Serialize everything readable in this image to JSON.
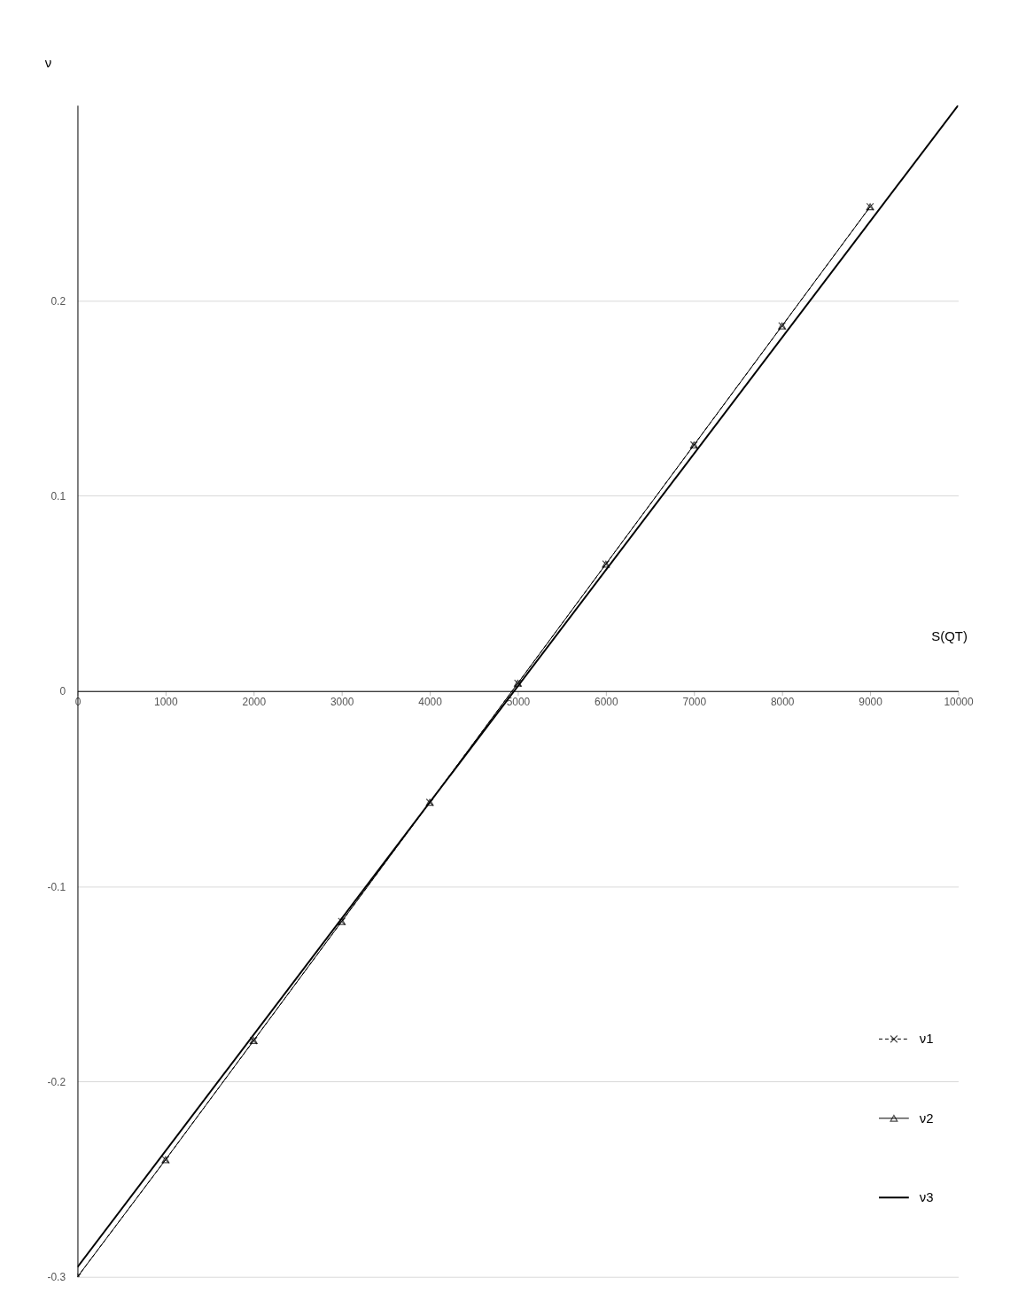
{
  "chart_data": {
    "type": "line",
    "xlabel": "S(QT)",
    "ylabel": "ν",
    "xlim": [
      0,
      10000
    ],
    "ylim": [
      -0.3,
      0.3
    ],
    "xticks": [
      0,
      1000,
      2000,
      3000,
      4000,
      5000,
      6000,
      7000,
      8000,
      9000,
      10000
    ],
    "yticks": [
      -0.3,
      -0.2,
      -0.1,
      0,
      0.1,
      0.2
    ],
    "grid": "y",
    "legend": "bottom right",
    "series": [
      {
        "name": "ν1",
        "color": "#000000",
        "marker": "cross",
        "line_style": "dashed",
        "x": [
          0,
          1000,
          2000,
          3000,
          4000,
          5000,
          6000,
          7000,
          8000,
          9000
        ],
        "values": [
          -0.3,
          -0.24,
          -0.179,
          -0.118,
          -0.057,
          0.004,
          0.065,
          0.126,
          0.187,
          0.248
        ]
      },
      {
        "name": "ν2",
        "color": "#000000",
        "marker": "triangle",
        "line_style": "solid",
        "x": [
          0,
          1000,
          2000,
          3000,
          4000,
          5000,
          6000,
          7000,
          8000,
          9000
        ],
        "values": [
          -0.3,
          -0.24,
          -0.179,
          -0.118,
          -0.057,
          0.004,
          0.065,
          0.126,
          0.187,
          0.248
        ]
      },
      {
        "name": "ν3",
        "color": "#000000",
        "marker": "none",
        "line_style": "solid",
        "x": [
          0,
          10000
        ],
        "values": [
          -0.295,
          0.3
        ]
      }
    ]
  }
}
